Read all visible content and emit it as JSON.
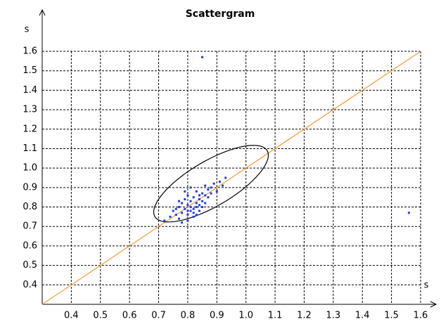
{
  "chart_data": {
    "type": "scatter",
    "title": "Scattergram",
    "x_label": "s",
    "y_label": "s",
    "xlim": [
      0.3,
      1.6
    ],
    "ylim": [
      0.3,
      1.6
    ],
    "xticks": [
      0.4,
      0.5,
      0.6,
      0.7,
      0.8,
      0.9,
      {
        "value": 1.0,
        "label": "1.0"
      },
      1.1,
      1.2,
      1.3,
      1.4,
      1.5,
      1.6
    ],
    "yticks": [
      0.4,
      0.5,
      0.6,
      0.7,
      0.8,
      0.9,
      {
        "value": 1.0,
        "label": "1.0"
      },
      1.1,
      1.2,
      1.3,
      1.4,
      1.5,
      1.6
    ],
    "grid": true,
    "color": "#1f3cf0",
    "line_color": "#f4a040",
    "ellipse": {
      "cx": 0.88,
      "cy": 0.92,
      "rx": 0.26,
      "ry": 0.1,
      "angle": 45
    },
    "x": [
      0.72,
      0.74,
      0.75,
      0.76,
      0.77,
      0.77,
      0.78,
      0.78,
      0.79,
      0.79,
      0.8,
      0.8,
      0.8,
      0.81,
      0.81,
      0.81,
      0.82,
      0.82,
      0.82,
      0.83,
      0.83,
      0.83,
      0.84,
      0.84,
      0.84,
      0.85,
      0.85,
      0.86,
      0.86,
      0.87,
      0.87,
      0.88,
      0.88,
      0.89,
      0.9,
      0.91,
      0.92,
      0.93,
      0.78,
      0.8,
      0.82,
      0.76,
      0.79,
      0.83,
      0.85,
      0.81,
      0.77,
      0.84,
      0.86,
      0.8,
      0.85,
      1.56
    ],
    "values": [
      0.73,
      0.75,
      0.78,
      0.76,
      0.8,
      0.74,
      0.82,
      0.77,
      0.79,
      0.84,
      0.81,
      0.76,
      0.86,
      0.78,
      0.83,
      0.8,
      0.85,
      0.79,
      0.77,
      0.82,
      0.88,
      0.8,
      0.84,
      0.81,
      0.78,
      0.87,
      0.83,
      0.86,
      0.82,
      0.89,
      0.85,
      0.9,
      0.87,
      0.92,
      0.88,
      0.93,
      0.91,
      0.95,
      0.72,
      0.73,
      0.75,
      0.79,
      0.88,
      0.76,
      0.8,
      0.9,
      0.83,
      0.86,
      0.91,
      0.78,
      1.57,
      0.77
    ]
  }
}
